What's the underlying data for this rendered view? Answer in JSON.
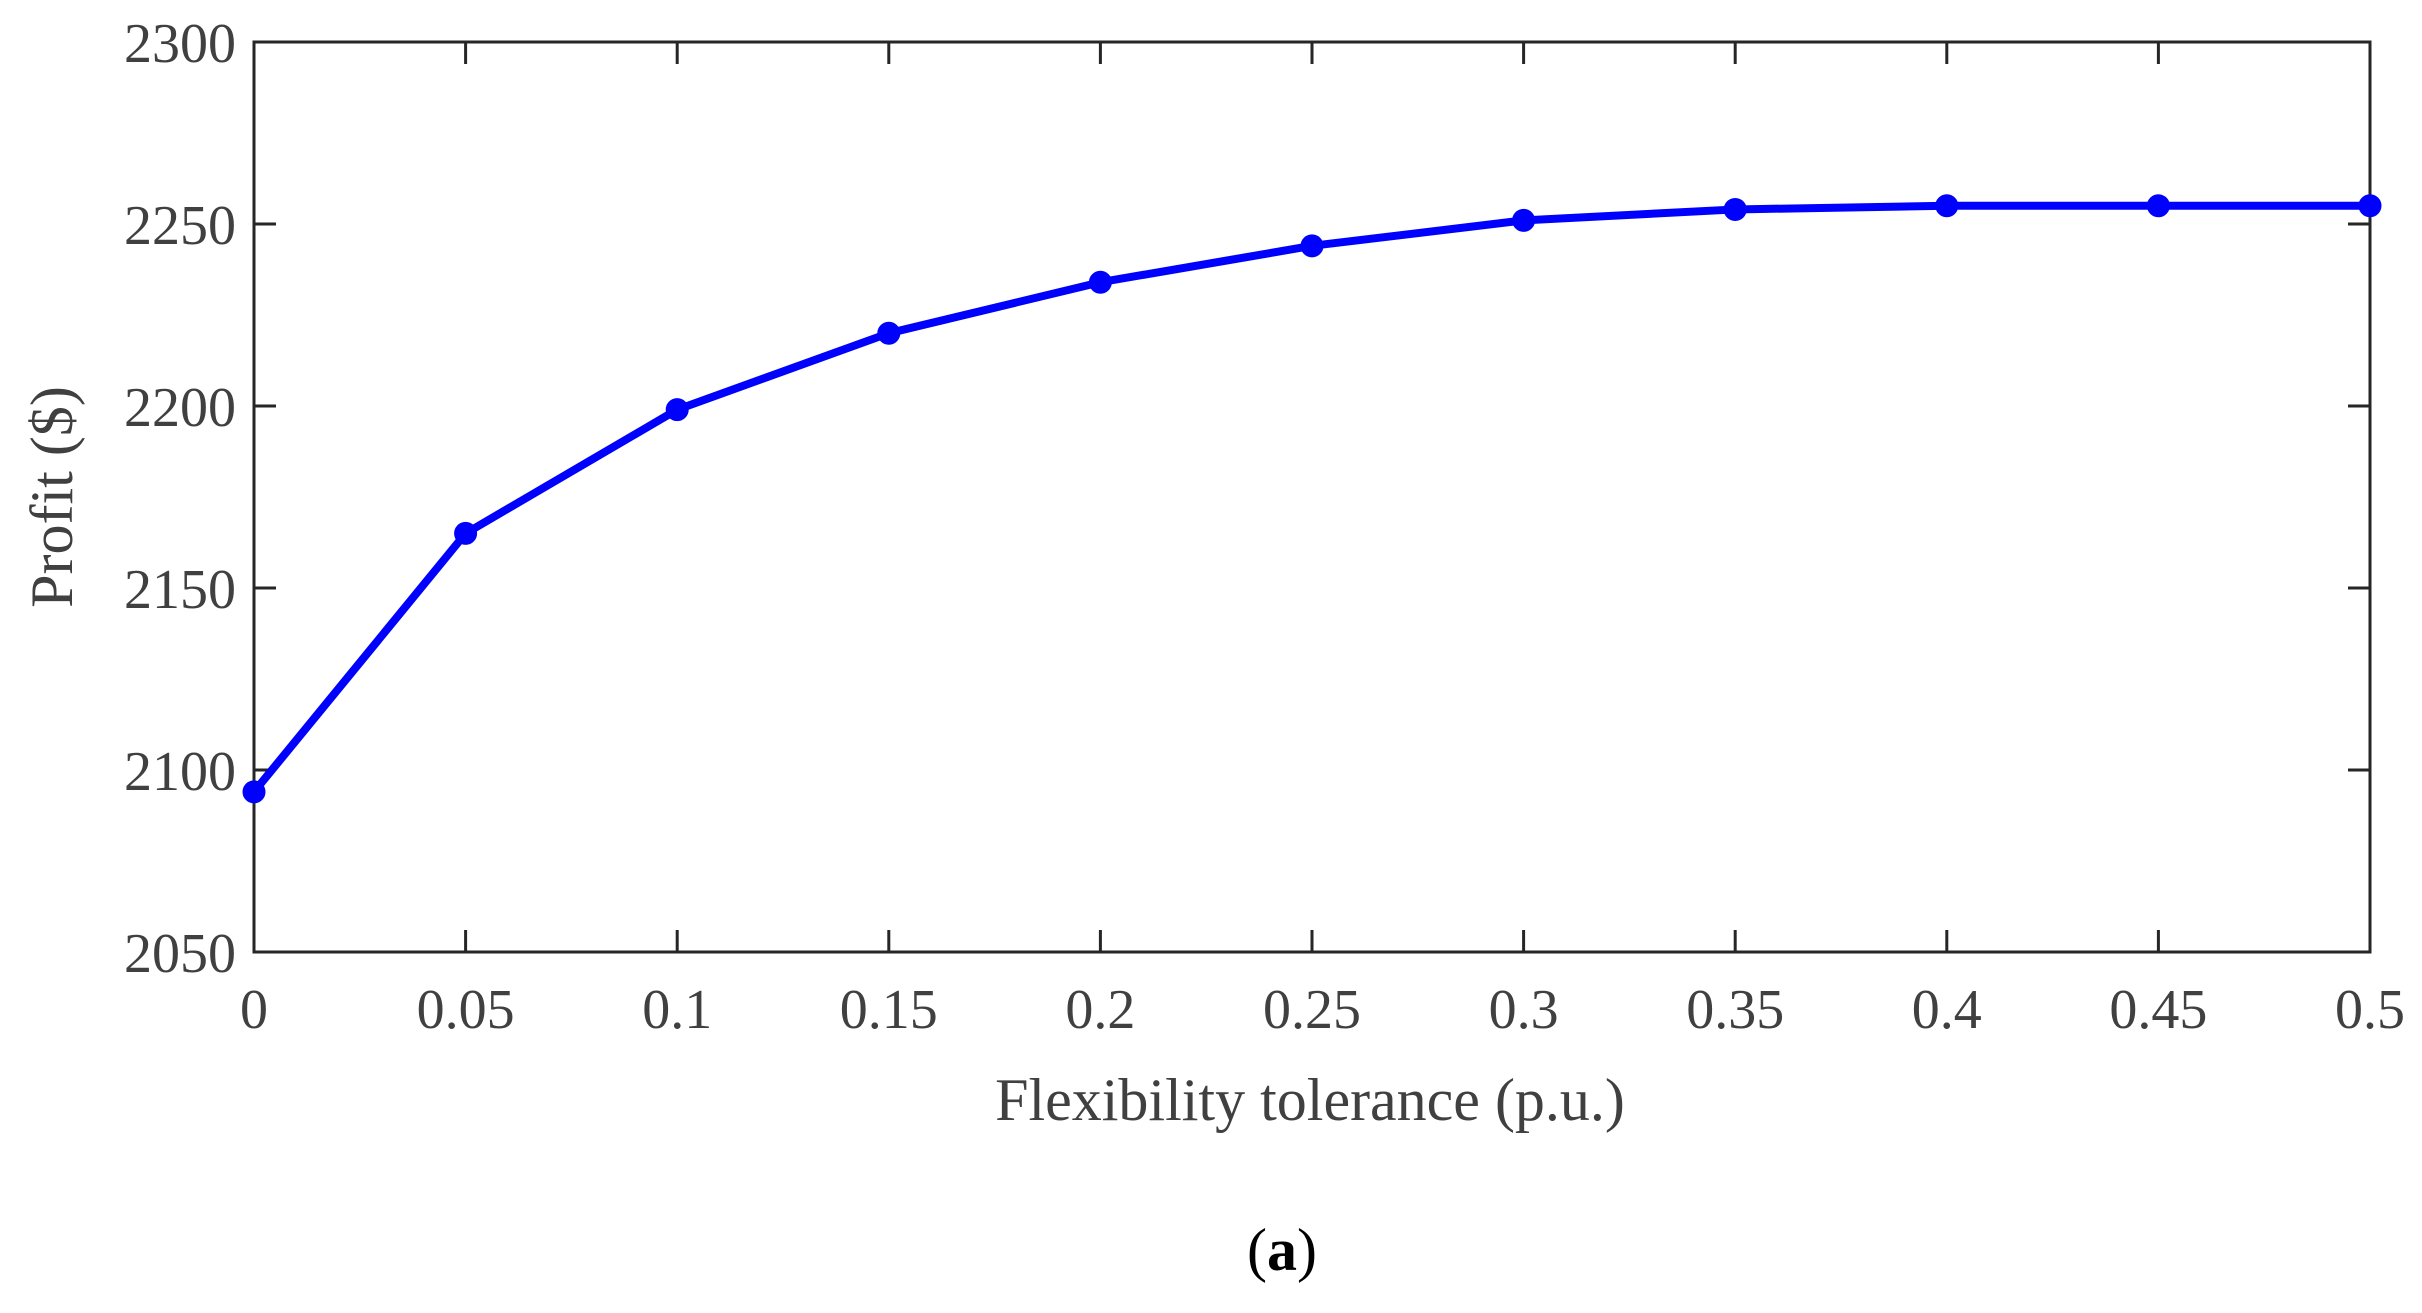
{
  "chart_data": {
    "type": "line",
    "title": "",
    "xlabel": "Flexibility tolerance (p.u.)",
    "ylabel": "Profit ($)",
    "xlim": [
      0,
      0.5
    ],
    "ylim": [
      2050,
      2300
    ],
    "xticks": [
      0,
      0.05,
      0.1,
      0.15,
      0.2,
      0.25,
      0.3,
      0.35,
      0.4,
      0.45,
      0.5
    ],
    "xtick_labels": [
      "0",
      "0.05",
      "0.1",
      "0.15",
      "0.2",
      "0.25",
      "0.3",
      "0.35",
      "0.4",
      "0.45",
      "0.5"
    ],
    "yticks": [
      2050,
      2100,
      2150,
      2200,
      2250,
      2300
    ],
    "ytick_labels": [
      "2050",
      "2100",
      "2150",
      "2200",
      "2250",
      "2300"
    ],
    "grid": false,
    "series": [
      {
        "color": "#0000ff",
        "marker": "circle",
        "x": [
          0,
          0.05,
          0.1,
          0.15,
          0.2,
          0.25,
          0.3,
          0.35,
          0.4,
          0.45,
          0.5
        ],
        "y": [
          2094,
          2165,
          2199,
          2220,
          2234,
          2244,
          2251,
          2254,
          2255,
          2255,
          2255
        ]
      }
    ]
  },
  "caption": {
    "open": "(",
    "letter": "a",
    "close": ")"
  }
}
